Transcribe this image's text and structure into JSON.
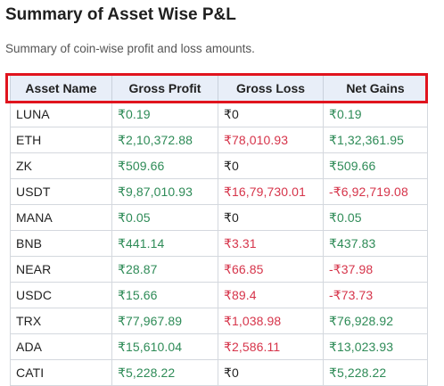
{
  "page": {
    "title": "Summary of Asset Wise P&L",
    "subtitle": "Summary of coin-wise profit and loss amounts."
  },
  "table": {
    "headers": [
      "Asset Name",
      "Gross Profit",
      "Gross Loss",
      "Net Gains"
    ],
    "rows": [
      {
        "asset": "LUNA",
        "profit": "₹0.19",
        "loss": "₹0",
        "net": "₹0.19"
      },
      {
        "asset": "ETH",
        "profit": "₹2,10,372.88",
        "loss": "₹78,010.93",
        "net": "₹1,32,361.95"
      },
      {
        "asset": "ZK",
        "profit": "₹509.66",
        "loss": "₹0",
        "net": "₹509.66"
      },
      {
        "asset": "USDT",
        "profit": "₹9,87,010.93",
        "loss": "₹16,79,730.01",
        "net": "-₹6,92,719.08"
      },
      {
        "asset": "MANA",
        "profit": "₹0.05",
        "loss": "₹0",
        "net": "₹0.05"
      },
      {
        "asset": "BNB",
        "profit": "₹441.14",
        "loss": "₹3.31",
        "net": "₹437.83"
      },
      {
        "asset": "NEAR",
        "profit": "₹28.87",
        "loss": "₹66.85",
        "net": "-₹37.98"
      },
      {
        "asset": "USDC",
        "profit": "₹15.66",
        "loss": "₹89.4",
        "net": "-₹73.73"
      },
      {
        "asset": "TRX",
        "profit": "₹77,967.89",
        "loss": "₹1,038.98",
        "net": "₹76,928.92"
      },
      {
        "asset": "ADA",
        "profit": "₹15,610.04",
        "loss": "₹2,586.11",
        "net": "₹13,023.93"
      },
      {
        "asset": "CATI",
        "profit": "₹5,228.22",
        "loss": "₹0",
        "net": "₹5,228.22"
      }
    ]
  },
  "colors": {
    "positive": "#2e8b57",
    "negative": "#d6344a",
    "header_bg": "#e8eef8",
    "highlight": "#e0141e"
  }
}
